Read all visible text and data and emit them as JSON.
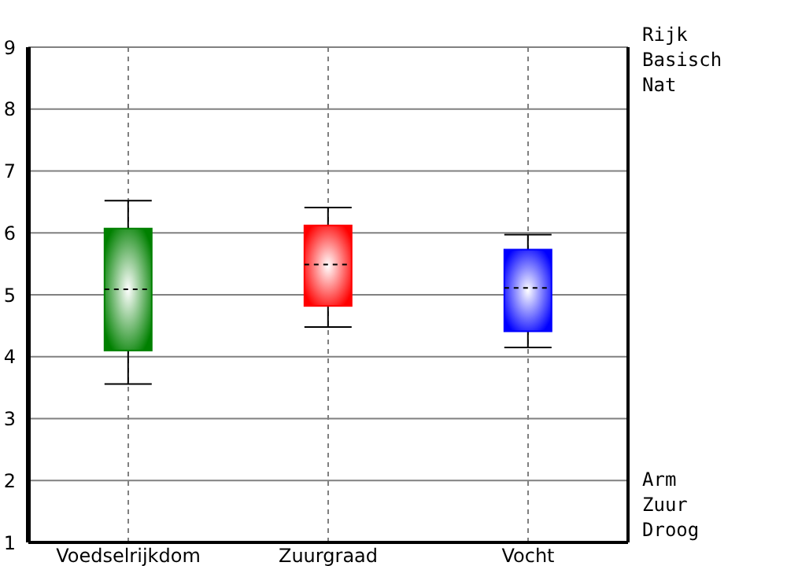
{
  "chart_data": {
    "type": "box",
    "categories": [
      "Voedselrijkdom",
      "Zuurgraad",
      "Vocht"
    ],
    "boxes": [
      {
        "low": 3.56,
        "q1": 4.1,
        "median": 5.09,
        "q3": 6.07,
        "high": 6.52
      },
      {
        "low": 4.48,
        "q1": 4.82,
        "median": 5.49,
        "q3": 6.12,
        "high": 6.41
      },
      {
        "low": 4.15,
        "q1": 4.41,
        "median": 5.11,
        "q3": 5.73,
        "high": 5.97
      }
    ],
    "colors": [
      "#008000",
      "#ff0000",
      "#0000ff"
    ],
    "ylim": [
      1,
      9
    ],
    "yticks": [
      1,
      2,
      3,
      4,
      5,
      6,
      7,
      8,
      9
    ],
    "grid": true,
    "annotations": [
      "Rijk\nBasisch\nNat",
      "Arm\nZuur\nDroog"
    ]
  }
}
